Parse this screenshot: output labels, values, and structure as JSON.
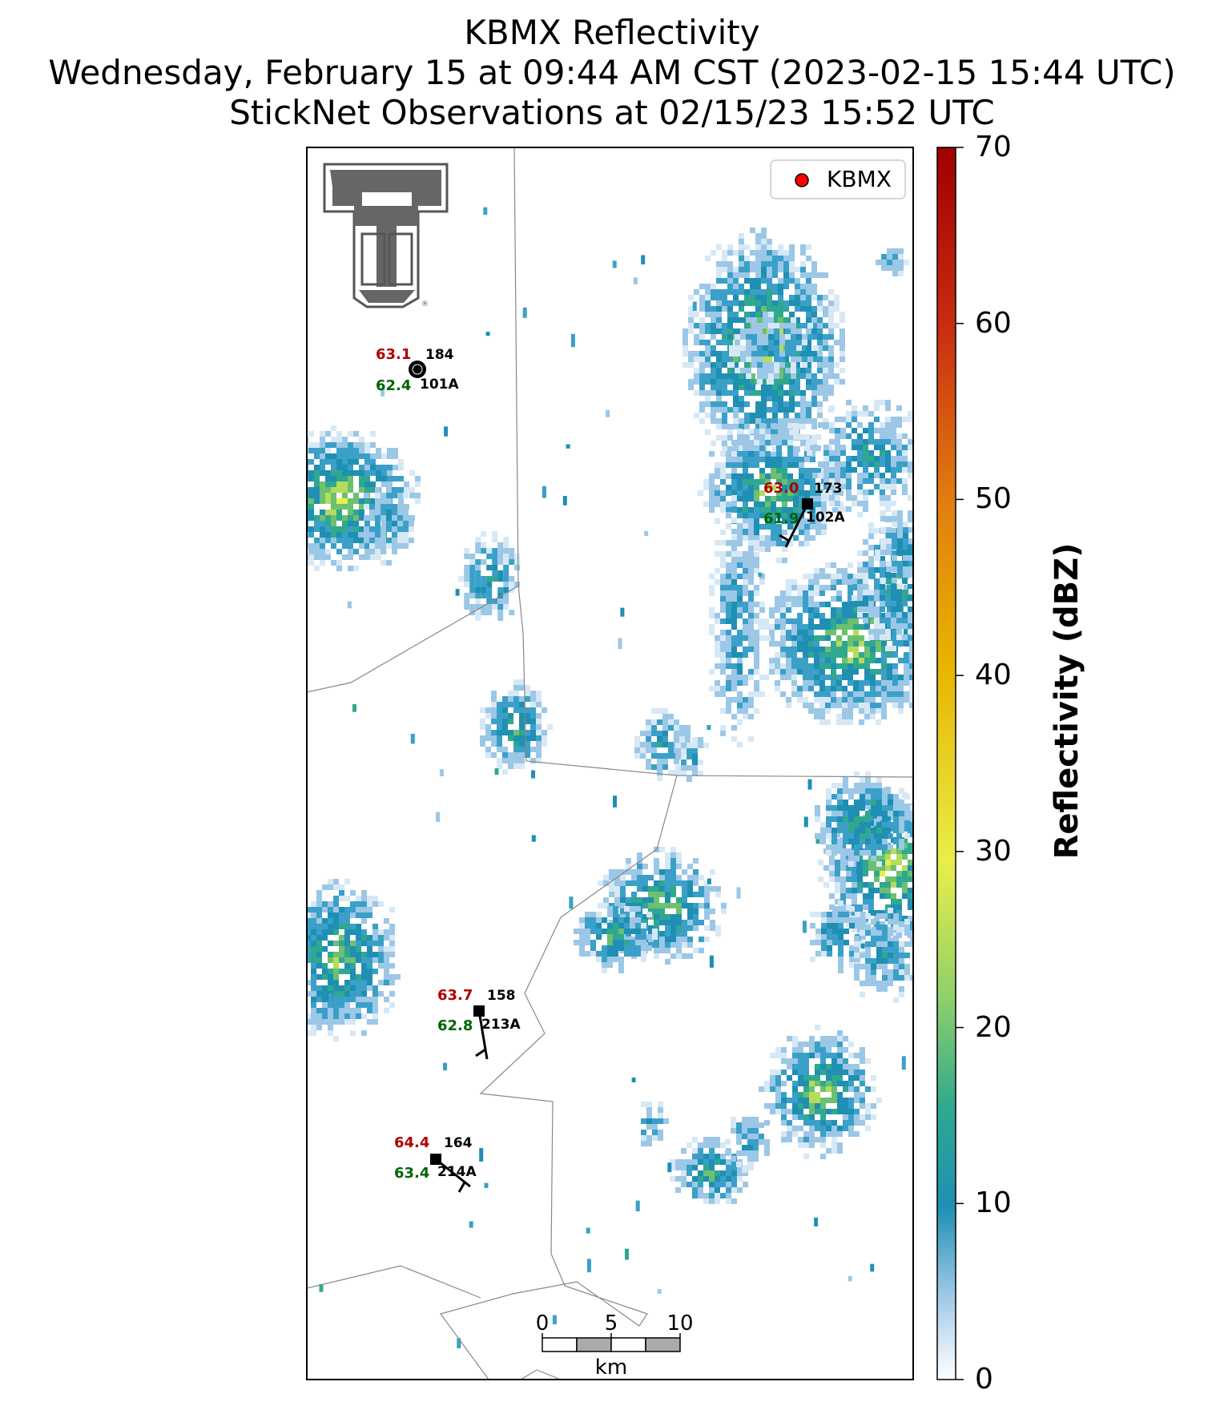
{
  "title": {
    "line1": "KBMX Reflectivity",
    "line2": "Wednesday, February 15 at 09:44 AM CST (2023-02-15 15:44 UTC)",
    "line3": "StickNet Observations at 02/15/23 15:52 UTC"
  },
  "legend": {
    "label": "KBMX",
    "marker_color": "#ff0000"
  },
  "colorbar": {
    "label": "Reflectivity (dBZ)",
    "ticks": [
      "0",
      "10",
      "20",
      "30",
      "40",
      "50",
      "60",
      "70"
    ],
    "range": [
      0,
      70
    ],
    "colors": [
      "#ffffff",
      "#9cc7e6",
      "#1f8fb3",
      "#2fa88f",
      "#8fd06a",
      "#e8ee4a",
      "#e8b400",
      "#e07a10",
      "#c82a10",
      "#a00000"
    ]
  },
  "scalebar": {
    "ticks": [
      "0",
      "5",
      "10"
    ],
    "unit": "km"
  },
  "stations": [
    {
      "temp": "63.1",
      "id_num": "184",
      "dew": "62.4",
      "id": "101A",
      "marker": "circle"
    },
    {
      "temp": "63.0",
      "id_num": "173",
      "dew": "61.9",
      "id": "102A",
      "marker": "square"
    },
    {
      "temp": "63.7",
      "id_num": "158",
      "dew": "62.8",
      "id": "213A",
      "marker": "square"
    },
    {
      "temp": "64.4",
      "id_num": "164",
      "dew": "63.4",
      "id": "214A",
      "marker": "square"
    }
  ],
  "colors": {
    "temp": "#b00000",
    "dew": "#006400",
    "boundary": "#888888"
  }
}
